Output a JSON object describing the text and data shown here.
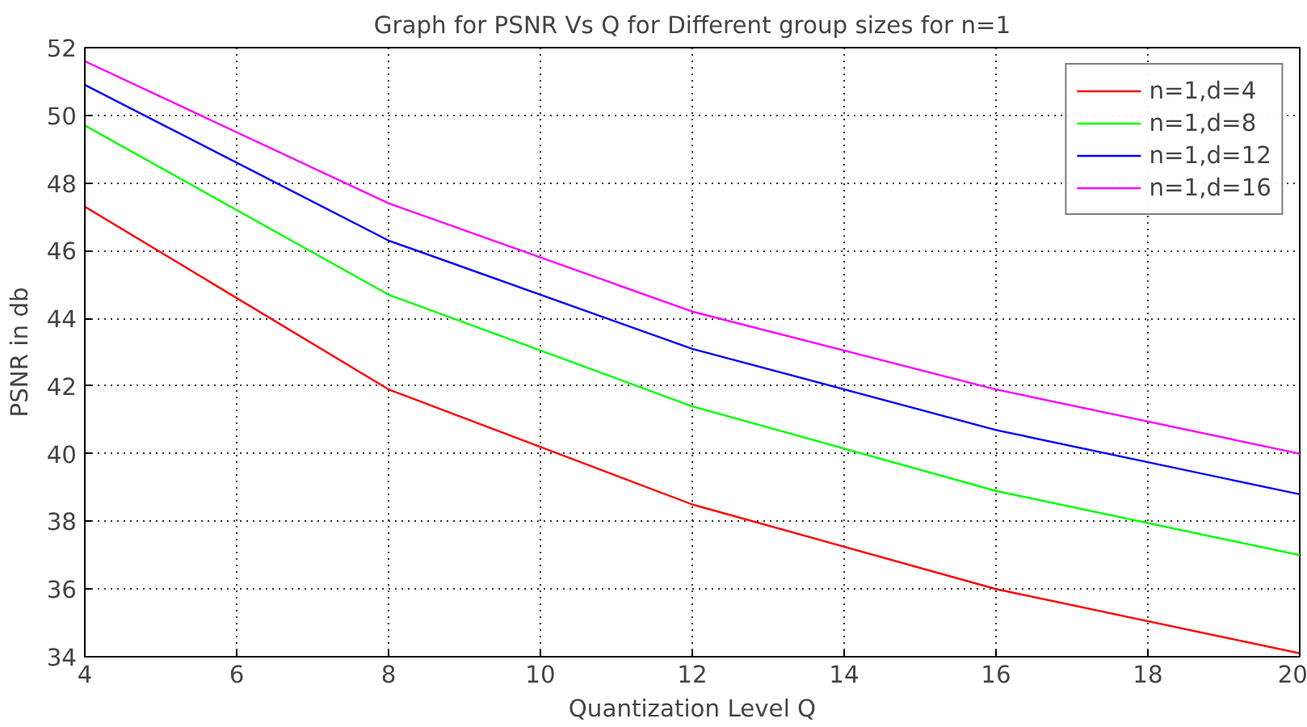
{
  "chart_data": {
    "type": "line",
    "title": "Graph for PSNR Vs Q for Different group sizes for n=1",
    "xlabel": "Quantization Level Q",
    "ylabel": "PSNR in db",
    "x": [
      4,
      8,
      12,
      16,
      20
    ],
    "series": [
      {
        "name": "n=1,d=4",
        "color": "#ff0000",
        "values": [
          47.3,
          41.9,
          38.5,
          36.0,
          34.1
        ]
      },
      {
        "name": "n=1,d=8",
        "color": "#00ff00",
        "values": [
          49.7,
          44.7,
          41.4,
          38.9,
          37.0
        ]
      },
      {
        "name": "n=1,d=12",
        "color": "#0000ff",
        "values": [
          50.9,
          46.3,
          43.1,
          40.7,
          38.8
        ]
      },
      {
        "name": "n=1,d=16",
        "color": "#ff00ff",
        "values": [
          51.6,
          47.4,
          44.2,
          41.9,
          40.0
        ]
      }
    ],
    "xlim": [
      4,
      20
    ],
    "ylim": [
      34,
      52
    ],
    "xticks": [
      4,
      6,
      8,
      10,
      12,
      14,
      16,
      18,
      20
    ],
    "yticks": [
      34,
      36,
      38,
      40,
      42,
      44,
      46,
      48,
      50,
      52
    ],
    "grid": true,
    "legend": "top right",
    "line_style": "solid"
  }
}
